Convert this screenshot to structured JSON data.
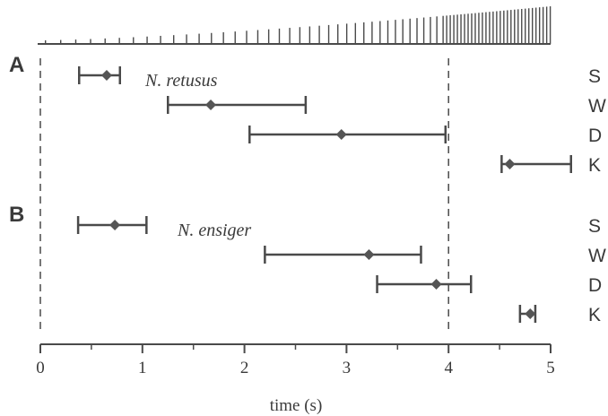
{
  "chart_data": {
    "type": "interval",
    "xlabel": "time (s)",
    "xlim": [
      0,
      5
    ],
    "xticks": [
      "0",
      "1",
      "2",
      "3",
      "4",
      "5"
    ],
    "reference_lines_x": [
      0,
      4
    ],
    "pulse_train": {
      "x_start": 0,
      "x_end": 5,
      "spacing": "decreasing"
    },
    "panels": [
      {
        "label": "A",
        "species": "N. retusus",
        "rows": [
          {
            "category": "S",
            "mean": 0.65,
            "low": 0.38,
            "high": 0.78
          },
          {
            "category": "W",
            "mean": 1.67,
            "low": 1.25,
            "high": 2.6
          },
          {
            "category": "D",
            "mean": 2.95,
            "low": 2.05,
            "high": 3.97
          },
          {
            "category": "K",
            "mean": 4.6,
            "low": 4.52,
            "high": 5.2
          }
        ]
      },
      {
        "label": "B",
        "species": "N. ensiger",
        "rows": [
          {
            "category": "S",
            "mean": 0.73,
            "low": 0.37,
            "high": 1.04
          },
          {
            "category": "W",
            "mean": 3.22,
            "low": 2.2,
            "high": 3.73
          },
          {
            "category": "D",
            "mean": 3.88,
            "low": 3.3,
            "high": 4.22
          },
          {
            "category": "K",
            "mean": 4.8,
            "low": 4.7,
            "high": 4.85
          }
        ]
      }
    ]
  },
  "colors": {
    "ink": "#4a4a4a",
    "marker": "#555555"
  }
}
